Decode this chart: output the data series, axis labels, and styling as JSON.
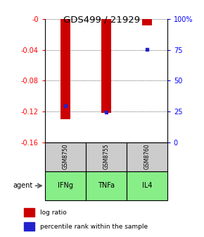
{
  "title": "GDS499 / 21929",
  "categories": [
    "IFNg",
    "TNFa",
    "IL4"
  ],
  "gsm_labels": [
    "GSM8750",
    "GSM8755",
    "GSM8760"
  ],
  "log_ratios": [
    -0.13,
    -0.122,
    -0.008
  ],
  "percentile_ranks": [
    0.295,
    0.245,
    0.754
  ],
  "bar_color": "#cc0000",
  "dot_color": "#2222cc",
  "gsm_color": "#cccccc",
  "agent_color": "#88ee88",
  "ylim_left": [
    -0.16,
    0.0
  ],
  "yticks_left": [
    -0.16,
    -0.12,
    -0.08,
    -0.04,
    0.0
  ],
  "ytick_labels_left": [
    "-0.16",
    "-0.12",
    "-0.08",
    "-0.04",
    "-0"
  ],
  "yticks_right": [
    0.0,
    0.25,
    0.5,
    0.75,
    1.0
  ],
  "ytick_labels_right": [
    "0",
    "25",
    "50",
    "75",
    "100%"
  ],
  "legend_log": "log ratio",
  "legend_pct": "percentile rank within the sample"
}
